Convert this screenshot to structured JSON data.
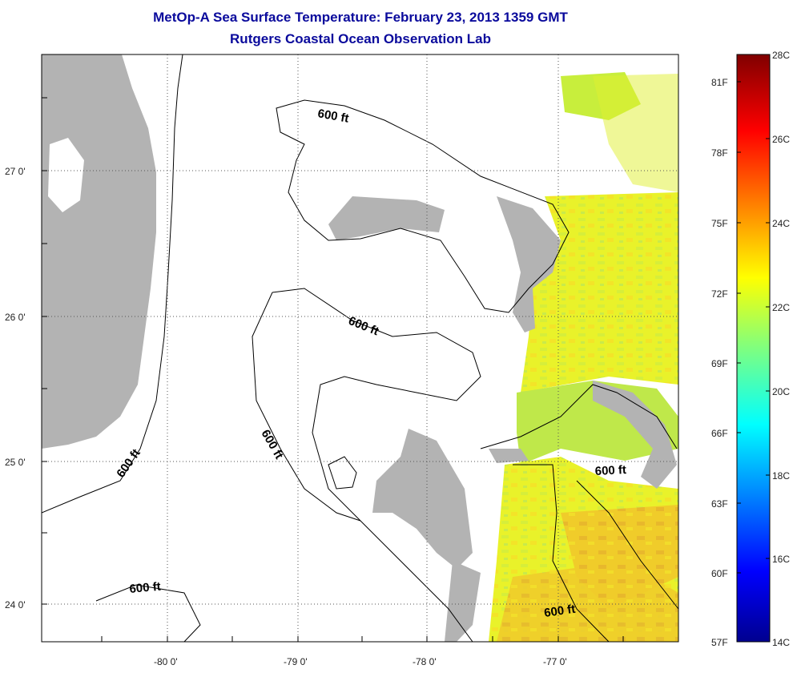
{
  "title": "MetOp-A Sea Surface Temperature:  February 23, 2013 1359 GMT",
  "subtitle": "Rutgers Coastal Ocean Observation Lab",
  "map": {
    "lon_ticks": [
      "-80 0'",
      "-79 0'",
      "-78 0'",
      "-77 0'"
    ],
    "lat_ticks": [
      "27 0'",
      "26 0'",
      "25 0'",
      "24 0'"
    ],
    "contour_label": "600 ft",
    "colors": {
      "land": "#b3b3b3",
      "water_nodata": "#ffffff",
      "grid": "#555555"
    }
  },
  "colorbar": {
    "fahrenheit_labels": [
      "81F",
      "78F",
      "75F",
      "72F",
      "69F",
      "66F",
      "63F",
      "60F",
      "57F"
    ],
    "celsius_labels": [
      "28C",
      "26C",
      "24C",
      "22C",
      "20C",
      "18C",
      "16C",
      "14C"
    ]
  }
}
